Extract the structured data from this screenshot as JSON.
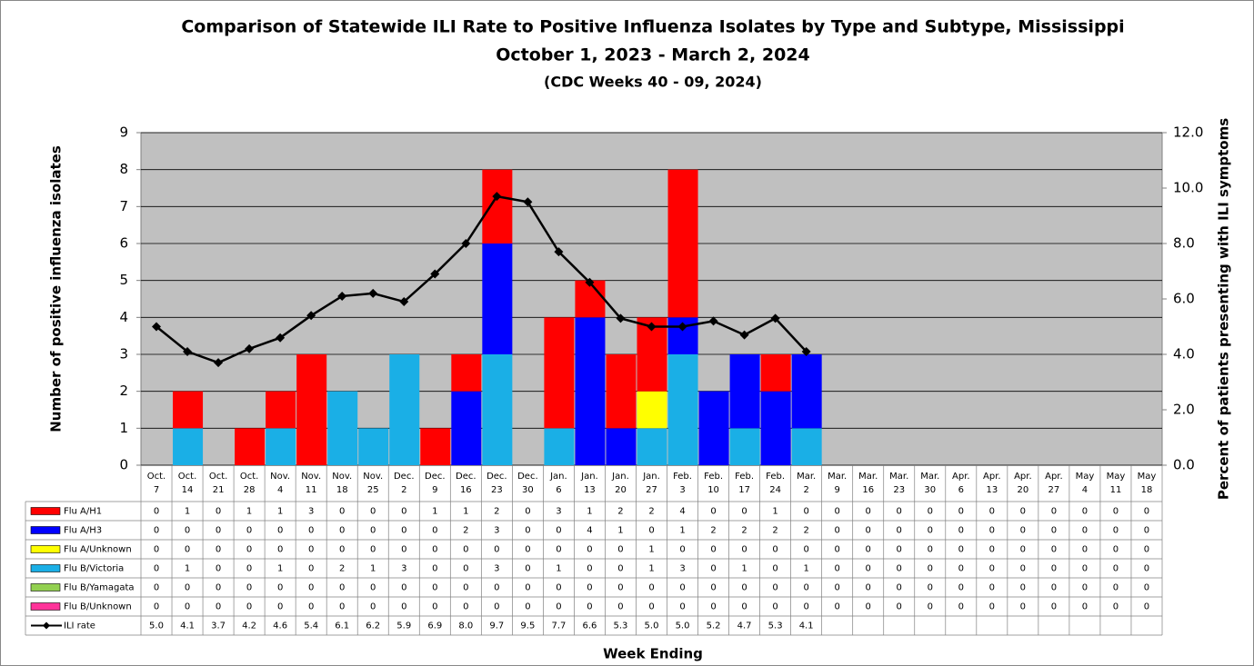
{
  "chart_data": {
    "type": "bar",
    "title": "Comparison of Statewide ILI Rate to Positive Influenza Isolates by Type and Subtype, Mississippi",
    "subtitle": "October 1, 2023 - March 2, 2024",
    "subtitle2": "(CDC Weeks 40 - 09, 2024)",
    "x_label": "Week Ending",
    "y_label": "Number of positive influenza isolates",
    "y2_label": "Percent of patients presenting with ILI symptoms",
    "categories": [
      "Oct. 7",
      "Oct. 14",
      "Oct. 21",
      "Oct. 28",
      "Nov. 4",
      "Nov. 11",
      "Nov. 18",
      "Nov. 25",
      "Dec. 2",
      "Dec. 9",
      "Dec. 16",
      "Dec. 23",
      "Dec. 30",
      "Jan. 6",
      "Jan. 13",
      "Jan. 20",
      "Jan. 27",
      "Feb. 3",
      "Feb. 10",
      "Feb. 17",
      "Feb. 24",
      "Mar. 2",
      "Mar. 9",
      "Mar. 16",
      "Mar. 23",
      "Mar. 30",
      "Apr. 6",
      "Apr. 13",
      "Apr. 20",
      "Apr. 27",
      "May 4",
      "May 11",
      "May 18"
    ],
    "series": [
      {
        "name": "Flu A/H1",
        "color": "#ff0000",
        "values": [
          0,
          1,
          0,
          1,
          1,
          3,
          0,
          0,
          0,
          1,
          1,
          2,
          0,
          3,
          1,
          2,
          2,
          4,
          0,
          0,
          1,
          0,
          0,
          0,
          0,
          0,
          0,
          0,
          0,
          0,
          0,
          0,
          0
        ]
      },
      {
        "name": "Flu A/H3",
        "color": "#0000ff",
        "values": [
          0,
          0,
          0,
          0,
          0,
          0,
          0,
          0,
          0,
          0,
          2,
          3,
          0,
          0,
          4,
          1,
          0,
          1,
          2,
          2,
          2,
          2,
          0,
          0,
          0,
          0,
          0,
          0,
          0,
          0,
          0,
          0,
          0
        ]
      },
      {
        "name": "Flu A/Unknown",
        "color": "#ffff00",
        "values": [
          0,
          0,
          0,
          0,
          0,
          0,
          0,
          0,
          0,
          0,
          0,
          0,
          0,
          0,
          0,
          0,
          1,
          0,
          0,
          0,
          0,
          0,
          0,
          0,
          0,
          0,
          0,
          0,
          0,
          0,
          0,
          0,
          0
        ]
      },
      {
        "name": "Flu B/Victoria",
        "color": "#1aafe6",
        "values": [
          0,
          1,
          0,
          0,
          1,
          0,
          2,
          1,
          3,
          0,
          0,
          3,
          0,
          1,
          0,
          0,
          1,
          3,
          0,
          1,
          0,
          1,
          0,
          0,
          0,
          0,
          0,
          0,
          0,
          0,
          0,
          0,
          0
        ]
      },
      {
        "name": "Flu B/Yamagata",
        "color": "#92d050",
        "values": [
          0,
          0,
          0,
          0,
          0,
          0,
          0,
          0,
          0,
          0,
          0,
          0,
          0,
          0,
          0,
          0,
          0,
          0,
          0,
          0,
          0,
          0,
          0,
          0,
          0,
          0,
          0,
          0,
          0,
          0,
          0,
          0,
          0
        ]
      },
      {
        "name": "Flu B/Unknown",
        "color": "#ff3399",
        "values": [
          0,
          0,
          0,
          0,
          0,
          0,
          0,
          0,
          0,
          0,
          0,
          0,
          0,
          0,
          0,
          0,
          0,
          0,
          0,
          0,
          0,
          0,
          0,
          0,
          0,
          0,
          0,
          0,
          0,
          0,
          0,
          0,
          0
        ]
      },
      {
        "name": "ILI rate",
        "color": "#000000",
        "axis": "y2",
        "values": [
          5.0,
          4.1,
          3.7,
          4.2,
          4.6,
          5.4,
          6.1,
          6.2,
          5.9,
          6.9,
          8.0,
          9.7,
          9.5,
          7.7,
          6.6,
          5.3,
          5.0,
          5.0,
          5.2,
          4.7,
          5.3,
          4.1,
          null,
          null,
          null,
          null,
          null,
          null,
          null,
          null,
          null,
          null,
          null
        ],
        "value_labels": [
          "5.0",
          "4.1",
          "3.7",
          "4.2",
          "4.6",
          "5.4",
          "6.1",
          "6.2",
          "5.9",
          "6.9",
          "8.0",
          "9.7",
          "9.5",
          "7.7",
          "6.6",
          "5.3",
          "5.0",
          "5.0",
          "5.2",
          "4.7",
          "5.3",
          "4.1",
          null,
          null,
          null,
          null,
          null,
          null,
          null,
          null,
          null,
          null,
          null
        ]
      }
    ],
    "ylim": [
      0,
      9
    ],
    "yticks": [
      0,
      1,
      2,
      3,
      4,
      5,
      6,
      7,
      8,
      9
    ],
    "y2lim": [
      0,
      12
    ],
    "y2ticks": [
      {
        "value": 0,
        "label": "0.0"
      },
      {
        "value": 2,
        "label": "2.0"
      },
      {
        "value": 4,
        "label": "4.0"
      },
      {
        "value": 6,
        "label": "6.0"
      },
      {
        "value": 8,
        "label": "8.0"
      },
      {
        "value": 10,
        "label": "10.0"
      },
      {
        "value": 12,
        "label": "12.0"
      }
    ],
    "grid": true,
    "plot_background": "#c0c0c0"
  }
}
